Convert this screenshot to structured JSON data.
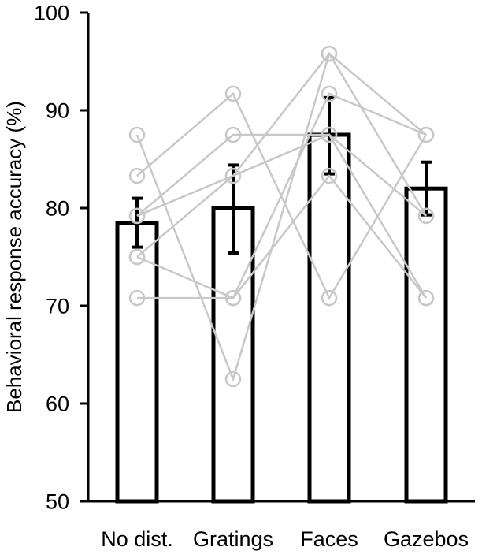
{
  "chart_data": {
    "type": "bar",
    "ylabel": "Behavioral response accuracy (%)",
    "xlabel": "",
    "ylim": [
      50,
      100
    ],
    "yticks": [
      "50",
      "60",
      "70",
      "80",
      "90",
      "100"
    ],
    "categories": [
      "No dist.",
      "Gratings",
      "Faces",
      "Gazebos"
    ],
    "values": [
      78.5,
      80.0,
      87.5,
      82.0
    ],
    "error_bars": [
      {
        "low": 76.0,
        "high": 81.0
      },
      {
        "low": 75.4,
        "high": 84.4
      },
      {
        "low": 83.5,
        "high": 91.3
      },
      {
        "low": 79.3,
        "high": 84.7
      }
    ],
    "individual_subjects": [
      {
        "values": [
          87.5,
          62.5,
          95.8,
          87.5
        ]
      },
      {
        "values": [
          83.3,
          91.7,
          70.8,
          87.5
        ]
      },
      {
        "values": [
          79.2,
          87.5,
          87.5,
          79.2
        ]
      },
      {
        "values": [
          75.0,
          83.3,
          95.8,
          79.2
        ]
      },
      {
        "values": [
          75.0,
          70.8,
          91.7,
          87.5
        ]
      },
      {
        "values": [
          70.8,
          70.8,
          83.3,
          70.8
        ]
      },
      {
        "values": [
          79.2,
          83.3,
          87.5,
          70.8
        ]
      }
    ],
    "colors": {
      "bar_stroke": "#000000",
      "bar_fill": "#ffffff",
      "subject_lines": "#c8c8c8",
      "error_bars": "#000000"
    },
    "grid": false,
    "legend": "none"
  }
}
